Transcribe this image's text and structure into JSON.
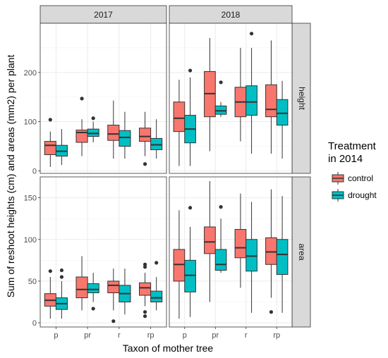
{
  "chart_data": {
    "type": "boxplot",
    "xlabel": "Taxon of mother tree",
    "ylabel": "Sum of reshoot heights (cm) and areas (mm2) per plant",
    "columns": [
      "2017",
      "2018"
    ],
    "rows": [
      "height",
      "area"
    ],
    "categories": [
      "p",
      "pr",
      "r",
      "rp"
    ],
    "legend": {
      "title": "Treatment\nin 2014",
      "entries": [
        {
          "name": "control",
          "color": "#F8766D"
        },
        {
          "name": "drought",
          "color": "#00BFC4"
        }
      ],
      "placement": "right"
    },
    "panels": [
      {
        "column": "2017",
        "row": "height",
        "ylim": [
          -5,
          300
        ],
        "yticks": [
          0,
          100,
          200
        ],
        "series": {
          "control": [
            {
              "cat": "p",
              "lw": 8,
              "q1": 33,
              "med": 52,
              "q3": 60,
              "uw": 80,
              "outliers": [
                104
              ]
            },
            {
              "cat": "pr",
              "lw": 30,
              "q1": 58,
              "med": 78,
              "q3": 83,
              "uw": 105,
              "outliers": [
                147
              ]
            },
            {
              "cat": "r",
              "lw": 25,
              "q1": 62,
              "med": 75,
              "q3": 93,
              "uw": 143,
              "outliers": []
            },
            {
              "cat": "rp",
              "lw": 30,
              "q1": 60,
              "med": 70,
              "q3": 87,
              "uw": 120,
              "outliers": [
                14
              ]
            }
          ],
          "drought": [
            {
              "cat": "p",
              "lw": 12,
              "q1": 30,
              "med": 40,
              "q3": 52,
              "uw": 85,
              "outliers": []
            },
            {
              "cat": "pr",
              "lw": 58,
              "q1": 70,
              "med": 76,
              "q3": 85,
              "uw": 100,
              "outliers": [
                107
              ]
            },
            {
              "cat": "r",
              "lw": 25,
              "q1": 50,
              "med": 68,
              "q3": 82,
              "uw": 120,
              "outliers": []
            },
            {
              "cat": "rp",
              "lw": 25,
              "q1": 43,
              "med": 53,
              "q3": 66,
              "uw": 105,
              "outliers": []
            }
          ]
        }
      },
      {
        "column": "2018",
        "row": "height",
        "ylim": [
          -5,
          300
        ],
        "yticks": [
          0,
          100,
          200
        ],
        "series": {
          "control": [
            {
              "cat": "p",
              "lw": 10,
              "q1": 80,
              "med": 107,
              "q3": 140,
              "uw": 185,
              "outliers": []
            },
            {
              "cat": "pr",
              "lw": 40,
              "q1": 110,
              "med": 157,
              "q3": 202,
              "uw": 270,
              "outliers": []
            },
            {
              "cat": "r",
              "lw": 60,
              "q1": 110,
              "med": 140,
              "q3": 170,
              "uw": 250,
              "outliers": []
            },
            {
              "cat": "rp",
              "lw": 35,
              "q1": 110,
              "med": 125,
              "q3": 175,
              "uw": 265,
              "outliers": []
            }
          ],
          "drought": [
            {
              "cat": "p",
              "lw": 10,
              "q1": 57,
              "med": 85,
              "q3": 113,
              "uw": 190,
              "outliers": [
                204
              ]
            },
            {
              "cat": "pr",
              "lw": 110,
              "q1": 115,
              "med": 122,
              "q3": 132,
              "uw": 140,
              "outliers": [
                180
              ]
            },
            {
              "cat": "r",
              "lw": 35,
              "q1": 113,
              "med": 140,
              "q3": 173,
              "uw": 250,
              "outliers": [
                279
              ]
            },
            {
              "cat": "rp",
              "lw": 25,
              "q1": 93,
              "med": 117,
              "q3": 145,
              "uw": 183,
              "outliers": []
            }
          ]
        }
      },
      {
        "column": "2017",
        "row": "area",
        "ylim": [
          -5,
          175
        ],
        "yticks": [
          0,
          50,
          100,
          150
        ],
        "series": {
          "control": [
            {
              "cat": "p",
              "lw": 5,
              "q1": 20,
              "med": 27,
              "q3": 35,
              "uw": 55,
              "outliers": [
                62
              ]
            },
            {
              "cat": "pr",
              "lw": 15,
              "q1": 30,
              "med": 40,
              "q3": 55,
              "uw": 80,
              "outliers": []
            },
            {
              "cat": "r",
              "lw": 15,
              "q1": 36,
              "med": 45,
              "q3": 50,
              "uw": 65,
              "outliers": [
                2
              ]
            },
            {
              "cat": "rp",
              "lw": 20,
              "q1": 33,
              "med": 42,
              "q3": 48,
              "uw": 60,
              "outliers": [
                70,
                67,
                13,
                8
              ]
            }
          ],
          "drought": [
            {
              "cat": "p",
              "lw": 5,
              "q1": 16,
              "med": 23,
              "q3": 30,
              "uw": 50,
              "outliers": [
                63,
                55
              ]
            },
            {
              "cat": "pr",
              "lw": 25,
              "q1": 36,
              "med": 40,
              "q3": 47,
              "uw": 60,
              "outliers": [
                17
              ]
            },
            {
              "cat": "r",
              "lw": 10,
              "q1": 25,
              "med": 35,
              "q3": 45,
              "uw": 65,
              "outliers": []
            },
            {
              "cat": "rp",
              "lw": 15,
              "q1": 25,
              "med": 30,
              "q3": 38,
              "uw": 55,
              "outliers": [
                72
              ]
            }
          ]
        }
      },
      {
        "column": "2018",
        "row": "area",
        "ylim": [
          -5,
          175
        ],
        "yticks": [
          0,
          50,
          100,
          150
        ],
        "series": {
          "control": [
            {
              "cat": "p",
              "lw": 5,
              "q1": 50,
              "med": 70,
              "q3": 88,
              "uw": 135,
              "outliers": []
            },
            {
              "cat": "pr",
              "lw": 25,
              "q1": 83,
              "med": 97,
              "q3": 115,
              "uw": 170,
              "outliers": []
            },
            {
              "cat": "r",
              "lw": 42,
              "q1": 78,
              "med": 90,
              "q3": 112,
              "uw": 155,
              "outliers": []
            },
            {
              "cat": "rp",
              "lw": 30,
              "q1": 70,
              "med": 85,
              "q3": 102,
              "uw": 160,
              "outliers": [
                13
              ]
            }
          ],
          "drought": [
            {
              "cat": "p",
              "lw": 7,
              "q1": 37,
              "med": 57,
              "q3": 75,
              "uw": 115,
              "outliers": [
                138
              ]
            },
            {
              "cat": "pr",
              "lw": 60,
              "q1": 63,
              "med": 70,
              "q3": 88,
              "uw": 125,
              "outliers": [
                139
              ]
            },
            {
              "cat": "r",
              "lw": 12,
              "q1": 62,
              "med": 80,
              "q3": 100,
              "uw": 145,
              "outliers": []
            },
            {
              "cat": "rp",
              "lw": 12,
              "q1": 58,
              "med": 82,
              "q3": 100,
              "uw": 152,
              "outliers": []
            }
          ]
        }
      }
    ]
  }
}
